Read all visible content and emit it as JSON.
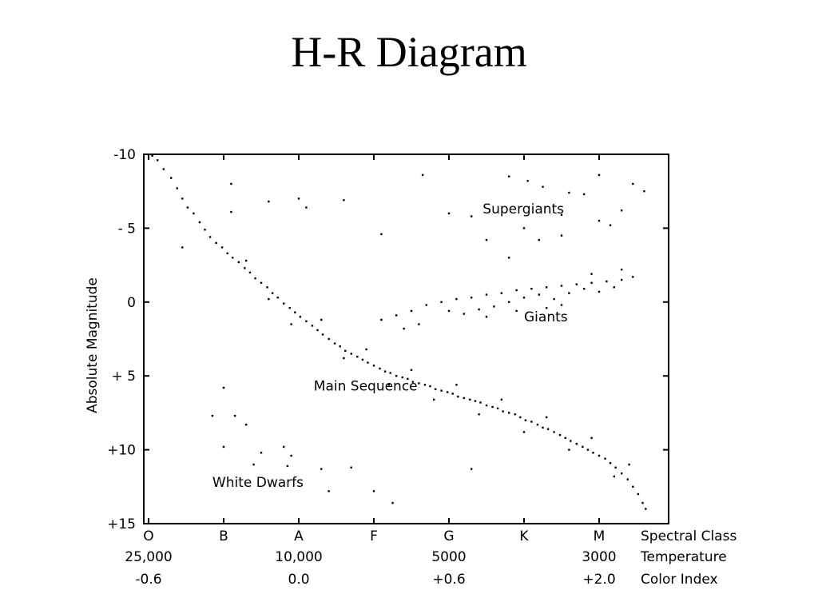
{
  "title": "H-R Diagram",
  "chart_data": {
    "type": "scatter",
    "title": "H-R Diagram",
    "ylabel": "Absolute Magnitude",
    "ylim": [
      -10,
      15
    ],
    "y_inverted": true,
    "yticks": [
      "-10",
      "- 5",
      "0",
      "+ 5",
      "+10",
      "+15"
    ],
    "ytick_values": [
      -10,
      -5,
      0,
      5,
      10,
      15
    ],
    "x_categories": [
      "O",
      "B",
      "A",
      "F",
      "G",
      "K",
      "M"
    ],
    "x_rows": [
      {
        "label": "Spectral Class",
        "ticks": [
          {
            "x": 0,
            "text": "O"
          },
          {
            "x": 1,
            "text": "B"
          },
          {
            "x": 2,
            "text": "A"
          },
          {
            "x": 3,
            "text": "F"
          },
          {
            "x": 4,
            "text": "G"
          },
          {
            "x": 5,
            "text": "K"
          },
          {
            "x": 6,
            "text": "M"
          }
        ]
      },
      {
        "label": "Temperature",
        "ticks": [
          {
            "x": 0,
            "text": "25,000"
          },
          {
            "x": 2,
            "text": "10,000"
          },
          {
            "x": 4,
            "text": "5000"
          },
          {
            "x": 6,
            "text": "3000"
          }
        ]
      },
      {
        "label": "Color Index",
        "ticks": [
          {
            "x": 0,
            "text": "-0.6"
          },
          {
            "x": 2,
            "text": "0.0"
          },
          {
            "x": 4,
            "text": "+0.6"
          },
          {
            "x": 6,
            "text": "+2.0"
          }
        ]
      }
    ],
    "annotations": [
      {
        "text": "Supergiants",
        "x": 4.45,
        "y": -6.0
      },
      {
        "text": "Giants",
        "x": 5.0,
        "y": 1.3
      },
      {
        "text": "Main Sequence",
        "x": 2.2,
        "y": 6.0
      },
      {
        "text": "White Dwarfs",
        "x": 0.85,
        "y": 12.5
      }
    ],
    "series": [
      {
        "group": "main-sequence",
        "points": [
          [
            0.05,
            -9.9
          ],
          [
            0.12,
            -9.6
          ],
          [
            0.2,
            -9.0
          ],
          [
            0.3,
            -8.4
          ],
          [
            0.38,
            -7.7
          ],
          [
            0.45,
            -7.0
          ],
          [
            0.52,
            -6.4
          ],
          [
            0.6,
            -6.0
          ],
          [
            0.68,
            -5.4
          ],
          [
            0.75,
            -4.9
          ],
          [
            0.82,
            -4.4
          ],
          [
            0.9,
            -4.0
          ],
          [
            0.98,
            -3.7
          ],
          [
            1.05,
            -3.3
          ],
          [
            1.12,
            -3.0
          ],
          [
            1.2,
            -2.7
          ],
          [
            1.28,
            -2.3
          ],
          [
            1.35,
            -2.0
          ],
          [
            1.42,
            -1.6
          ],
          [
            1.5,
            -1.3
          ],
          [
            1.58,
            -1.0
          ],
          [
            1.65,
            -0.6
          ],
          [
            1.72,
            -0.3
          ],
          [
            1.8,
            0.1
          ],
          [
            1.88,
            0.4
          ],
          [
            1.95,
            0.7
          ],
          [
            2.02,
            1.0
          ],
          [
            2.1,
            1.3
          ],
          [
            2.18,
            1.6
          ],
          [
            2.25,
            1.9
          ],
          [
            2.32,
            2.2
          ],
          [
            2.4,
            2.5
          ],
          [
            2.48,
            2.8
          ],
          [
            2.55,
            3.0
          ],
          [
            2.62,
            3.3
          ],
          [
            2.7,
            3.5
          ],
          [
            2.78,
            3.7
          ],
          [
            2.85,
            3.9
          ],
          [
            2.92,
            4.1
          ],
          [
            3.0,
            4.3
          ],
          [
            3.08,
            4.5
          ],
          [
            3.15,
            4.7
          ],
          [
            3.22,
            4.8
          ],
          [
            3.3,
            5.0
          ],
          [
            3.38,
            5.1
          ],
          [
            3.45,
            5.2
          ],
          [
            3.52,
            5.4
          ],
          [
            3.6,
            5.5
          ],
          [
            3.68,
            5.6
          ],
          [
            3.75,
            5.7
          ],
          [
            3.82,
            5.9
          ],
          [
            3.9,
            6.0
          ],
          [
            3.98,
            6.1
          ],
          [
            4.05,
            6.2
          ],
          [
            4.12,
            6.4
          ],
          [
            4.2,
            6.5
          ],
          [
            4.28,
            6.6
          ],
          [
            4.35,
            6.7
          ],
          [
            4.42,
            6.8
          ],
          [
            4.5,
            7.0
          ],
          [
            4.58,
            7.1
          ],
          [
            4.65,
            7.2
          ],
          [
            4.72,
            7.4
          ],
          [
            4.8,
            7.5
          ],
          [
            4.88,
            7.6
          ],
          [
            4.95,
            7.8
          ],
          [
            5.02,
            8.0
          ],
          [
            5.1,
            8.1
          ],
          [
            5.18,
            8.3
          ],
          [
            5.25,
            8.5
          ],
          [
            5.32,
            8.6
          ],
          [
            5.4,
            8.8
          ],
          [
            5.48,
            9.0
          ],
          [
            5.55,
            9.2
          ],
          [
            5.62,
            9.4
          ],
          [
            5.7,
            9.6
          ],
          [
            5.78,
            9.8
          ],
          [
            5.85,
            10.0
          ],
          [
            5.92,
            10.2
          ],
          [
            6.0,
            10.4
          ],
          [
            6.08,
            10.6
          ],
          [
            6.15,
            10.9
          ],
          [
            6.22,
            11.2
          ],
          [
            6.3,
            11.6
          ],
          [
            6.38,
            12.0
          ],
          [
            6.45,
            12.5
          ],
          [
            6.52,
            13.0
          ],
          [
            6.58,
            13.6
          ],
          [
            6.62,
            14.0
          ],
          [
            1.3,
            -2.8
          ],
          [
            1.6,
            -0.2
          ],
          [
            1.9,
            1.5
          ],
          [
            2.3,
            1.2
          ],
          [
            2.6,
            3.8
          ],
          [
            2.9,
            3.2
          ],
          [
            3.2,
            5.6
          ],
          [
            3.5,
            4.6
          ],
          [
            3.8,
            6.6
          ],
          [
            4.1,
            5.6
          ],
          [
            4.4,
            7.6
          ],
          [
            4.7,
            6.6
          ],
          [
            5.0,
            8.8
          ],
          [
            5.3,
            7.8
          ],
          [
            5.6,
            10.0
          ],
          [
            5.9,
            9.2
          ],
          [
            6.2,
            11.8
          ],
          [
            6.4,
            11.0
          ]
        ]
      },
      {
        "group": "giants",
        "points": [
          [
            3.1,
            1.2
          ],
          [
            3.3,
            0.9
          ],
          [
            3.5,
            0.6
          ],
          [
            3.7,
            0.2
          ],
          [
            3.9,
            0.0
          ],
          [
            4.1,
            -0.2
          ],
          [
            4.3,
            -0.3
          ],
          [
            4.5,
            -0.5
          ],
          [
            4.7,
            -0.6
          ],
          [
            4.9,
            -0.8
          ],
          [
            5.1,
            -0.9
          ],
          [
            5.3,
            -1.0
          ],
          [
            5.5,
            -1.1
          ],
          [
            5.7,
            -1.2
          ],
          [
            5.9,
            -1.3
          ],
          [
            6.1,
            -1.4
          ],
          [
            6.3,
            -1.5
          ],
          [
            6.45,
            -1.7
          ],
          [
            4.6,
            0.3
          ],
          [
            4.8,
            0.0
          ],
          [
            5.0,
            -0.3
          ],
          [
            5.2,
            -0.5
          ],
          [
            5.4,
            -0.2
          ],
          [
            5.6,
            -0.6
          ],
          [
            5.8,
            -0.9
          ],
          [
            6.0,
            -0.7
          ],
          [
            6.2,
            -1.0
          ],
          [
            4.4,
            0.5
          ],
          [
            4.2,
            0.8
          ],
          [
            4.0,
            0.6
          ],
          [
            5.3,
            0.4
          ],
          [
            5.5,
            0.2
          ],
          [
            5.9,
            -1.9
          ],
          [
            6.3,
            -2.2
          ],
          [
            3.4,
            1.8
          ],
          [
            3.6,
            1.5
          ],
          [
            4.5,
            1.0
          ],
          [
            4.9,
            0.6
          ]
        ]
      },
      {
        "group": "supergiants",
        "points": [
          [
            3.65,
            -8.6
          ],
          [
            4.8,
            -8.5
          ],
          [
            5.05,
            -8.2
          ],
          [
            5.25,
            -7.8
          ],
          [
            5.6,
            -7.4
          ],
          [
            5.8,
            -7.3
          ],
          [
            6.0,
            -8.6
          ],
          [
            6.45,
            -8.0
          ],
          [
            6.6,
            -7.5
          ],
          [
            4.0,
            -6.0
          ],
          [
            4.3,
            -5.8
          ],
          [
            6.3,
            -6.2
          ],
          [
            5.5,
            -5.9
          ],
          [
            6.15,
            -5.2
          ],
          [
            5.0,
            -5.0
          ],
          [
            4.5,
            -4.2
          ],
          [
            5.2,
            -4.2
          ],
          [
            5.5,
            -4.5
          ],
          [
            6.0,
            -5.5
          ],
          [
            4.8,
            -3.0
          ],
          [
            2.0,
            -7.0
          ],
          [
            2.6,
            -6.9
          ],
          [
            1.6,
            -6.8
          ],
          [
            2.1,
            -6.4
          ],
          [
            1.1,
            -8.0
          ],
          [
            1.1,
            -6.1
          ],
          [
            3.1,
            -4.6
          ],
          [
            0.45,
            -3.7
          ]
        ]
      },
      {
        "group": "white-dwarfs",
        "points": [
          [
            0.85,
            7.7
          ],
          [
            1.15,
            7.7
          ],
          [
            1.0,
            9.8
          ],
          [
            1.5,
            10.2
          ],
          [
            1.8,
            9.8
          ],
          [
            1.9,
            10.4
          ],
          [
            1.4,
            11.0
          ],
          [
            1.85,
            11.1
          ],
          [
            2.3,
            11.3
          ],
          [
            2.7,
            11.2
          ],
          [
            2.4,
            12.8
          ],
          [
            3.0,
            12.8
          ],
          [
            3.25,
            13.6
          ],
          [
            1.3,
            8.3
          ],
          [
            1.0,
            5.8
          ],
          [
            4.3,
            11.3
          ]
        ]
      }
    ]
  }
}
